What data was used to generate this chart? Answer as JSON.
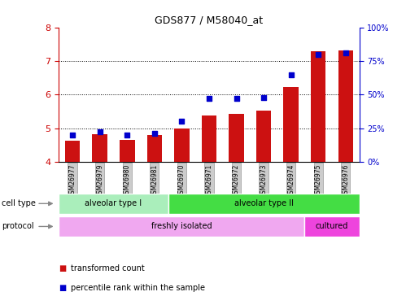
{
  "title": "GDS877 / M58040_at",
  "samples": [
    "GSM26977",
    "GSM26979",
    "GSM26980",
    "GSM26981",
    "GSM26970",
    "GSM26971",
    "GSM26972",
    "GSM26973",
    "GSM26974",
    "GSM26975",
    "GSM26976"
  ],
  "transformed_count": [
    4.62,
    4.83,
    4.65,
    4.8,
    5.0,
    5.38,
    5.42,
    5.52,
    6.22,
    7.3,
    7.32
  ],
  "percentile_rank": [
    20,
    22,
    20,
    21,
    30,
    47,
    47,
    48,
    65,
    80,
    81
  ],
  "ylim_left": [
    4,
    8
  ],
  "ylim_right": [
    0,
    100
  ],
  "yticks_left": [
    4,
    5,
    6,
    7,
    8
  ],
  "yticks_right": [
    0,
    25,
    50,
    75,
    100
  ],
  "ytick_labels_right": [
    "0%",
    "25%",
    "50%",
    "75%",
    "100%"
  ],
  "cell_type_groups": [
    {
      "label": "alveolar type I",
      "start": 0,
      "end": 3,
      "color": "#aaeebb"
    },
    {
      "label": "alveolar type II",
      "start": 4,
      "end": 10,
      "color": "#44dd44"
    }
  ],
  "protocol_groups": [
    {
      "label": "freshly isolated",
      "start": 0,
      "end": 8,
      "color": "#f0a8f0"
    },
    {
      "label": "cultured",
      "start": 9,
      "end": 10,
      "color": "#ee44dd"
    }
  ],
  "bar_color": "#cc1111",
  "dot_color": "#0000cc",
  "grid_color": "#000000",
  "left_axis_color": "#cc0000",
  "right_axis_color": "#0000cc",
  "background_color": "#ffffff",
  "cell_type_label": "cell type",
  "protocol_label": "protocol",
  "legend_items": [
    {
      "color": "#cc1111",
      "label": "transformed count"
    },
    {
      "color": "#0000cc",
      "label": "percentile rank within the sample"
    }
  ]
}
